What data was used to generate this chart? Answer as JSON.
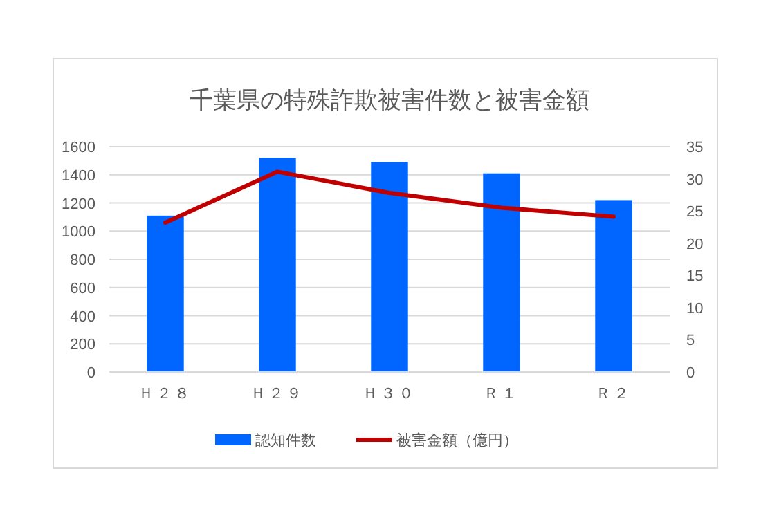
{
  "chart_data": {
    "type": "bar",
    "title": "千葉県の特殊詐欺被害件数と被害金額",
    "categories": [
      "Ｈ２８",
      "Ｈ２９",
      "Ｈ３０",
      "Ｒ１",
      "Ｒ２"
    ],
    "series": [
      {
        "name": "認知件数",
        "color": "#0066ff",
        "values": [
          1110,
          1520,
          1490,
          1410,
          1220
        ]
      },
      {
        "name": "被害金額（億円）",
        "type": "line",
        "axis": "y2",
        "color": "#c00000",
        "values": [
          23.2,
          31.1,
          27.8,
          25.5,
          24.1
        ]
      }
    ],
    "ylim": [
      0,
      1600
    ],
    "yticks": [
      0,
      200,
      400,
      600,
      800,
      1000,
      1200,
      1400,
      1600
    ],
    "y2lim": [
      0,
      35
    ],
    "y2ticks": [
      0,
      5,
      10,
      15,
      20,
      25,
      30,
      35
    ],
    "grid": "y",
    "legend": "bottom"
  }
}
